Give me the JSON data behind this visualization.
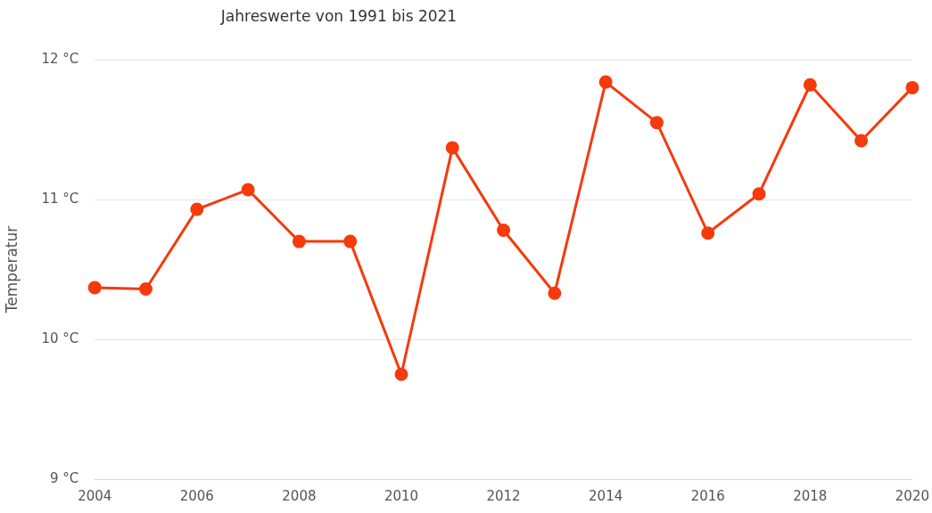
{
  "chart_data": {
    "type": "line",
    "title": "Jahreswerte von 1991 bis 2021",
    "ylabel": "Temperatur",
    "x": [
      2004,
      2005,
      2006,
      2007,
      2008,
      2009,
      2010,
      2011,
      2012,
      2013,
      2014,
      2015,
      2016,
      2017,
      2018,
      2019,
      2020
    ],
    "series": [
      {
        "color": "#f53a0c",
        "values": [
          10.37,
          10.36,
          10.93,
          11.07,
          10.7,
          10.7,
          9.75,
          11.37,
          10.78,
          10.33,
          11.84,
          11.55,
          10.76,
          11.04,
          11.82,
          11.42,
          11.8
        ]
      }
    ],
    "xlim": [
      2004,
      2020
    ],
    "xticks": [
      2004,
      2006,
      2008,
      2010,
      2012,
      2014,
      2016,
      2018,
      2020
    ],
    "ylim": [
      9,
      12
    ],
    "yticks": [
      {
        "value": 9,
        "label": "9 °C"
      },
      {
        "value": 10,
        "label": "10 °C"
      },
      {
        "value": 11,
        "label": "11 °C"
      },
      {
        "value": 12,
        "label": "12 °C"
      }
    ],
    "grid": "y",
    "legend": false,
    "marker": "circle",
    "line_style": "solid"
  }
}
